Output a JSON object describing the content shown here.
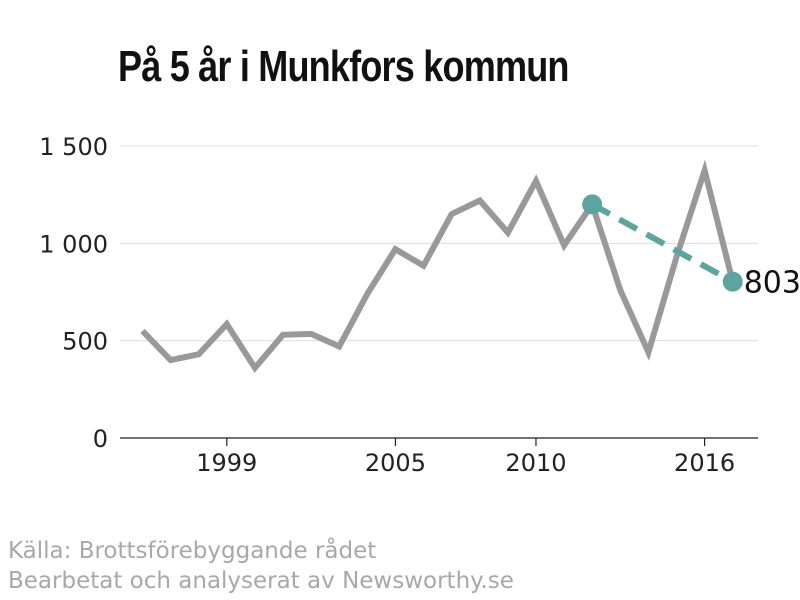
{
  "title": "På 5 år i Munkfors kommun",
  "source": {
    "line1": "Källa: Brottsförebyggande rådet",
    "line2": "Bearbetat och analyserat av Newsworthy.se"
  },
  "colors": {
    "main_line": "#999999",
    "highlight": "#5aa69e",
    "grid": "#dddddd",
    "axis": "#222222"
  },
  "chart_data": {
    "type": "line",
    "title": "På 5 år i Munkfors kommun",
    "xlabel": "",
    "ylabel": "",
    "xlim": [
      1995.2,
      2017.9
    ],
    "ylim": [
      0,
      1500
    ],
    "x_ticks": [
      1999,
      2005,
      2010,
      2016
    ],
    "y_ticks": [
      0,
      500,
      1000,
      1500
    ],
    "y_tick_labels": [
      "0",
      "500",
      "1 000",
      "1 500"
    ],
    "grid": true,
    "series": [
      {
        "style": "solid",
        "x": [
          1996,
          1997,
          1998,
          1999,
          2000,
          2001,
          2002,
          2003,
          2004,
          2005,
          2006,
          2007,
          2008,
          2009,
          2010,
          2011,
          2012,
          2013,
          2014,
          2015,
          2016,
          2017
        ],
        "y": [
          550,
          400,
          430,
          585,
          360,
          530,
          535,
          470,
          740,
          970,
          885,
          1150,
          1220,
          1055,
          1320,
          990,
          1200,
          760,
          440,
          930,
          1375,
          803
        ]
      },
      {
        "style": "dashed",
        "x": [
          2012,
          2017
        ],
        "y": [
          1200,
          803
        ],
        "end_label": "803"
      }
    ]
  }
}
